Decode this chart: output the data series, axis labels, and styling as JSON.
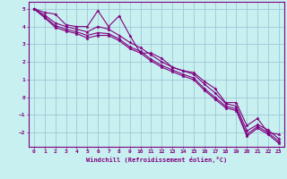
{
  "xlabel": "Windchill (Refroidissement éolien,°C)",
  "bg_color": "#c8f0f0",
  "grid_color": "#9ec8d8",
  "line_color": "#800080",
  "marker": "*",
  "xlim": [
    -0.5,
    23.5
  ],
  "ylim": [
    -2.8,
    5.4
  ],
  "yticks": [
    -2,
    -1,
    0,
    1,
    2,
    3,
    4,
    5
  ],
  "xticks": [
    0,
    1,
    2,
    3,
    4,
    5,
    6,
    7,
    8,
    9,
    10,
    11,
    12,
    13,
    14,
    15,
    16,
    17,
    18,
    19,
    20,
    21,
    22,
    23
  ],
  "lines": [
    [
      5.0,
      4.8,
      4.7,
      4.1,
      4.0,
      4.0,
      4.9,
      4.0,
      4.6,
      3.5,
      2.5,
      2.5,
      2.2,
      1.7,
      1.5,
      1.4,
      0.9,
      0.5,
      -0.3,
      -0.3,
      -1.6,
      -1.2,
      -2.0,
      -2.1
    ],
    [
      5.0,
      4.65,
      4.2,
      4.0,
      3.85,
      3.7,
      4.0,
      3.85,
      3.5,
      3.1,
      2.8,
      2.4,
      2.0,
      1.7,
      1.5,
      1.3,
      0.75,
      0.25,
      -0.35,
      -0.5,
      -1.9,
      -1.55,
      -1.85,
      -2.35
    ],
    [
      5.0,
      4.55,
      4.05,
      3.85,
      3.7,
      3.5,
      3.65,
      3.6,
      3.3,
      2.85,
      2.6,
      2.15,
      1.8,
      1.55,
      1.3,
      1.1,
      0.5,
      0.0,
      -0.5,
      -0.65,
      -2.1,
      -1.65,
      -2.0,
      -2.5
    ],
    [
      5.0,
      4.5,
      3.95,
      3.75,
      3.6,
      3.35,
      3.5,
      3.5,
      3.2,
      2.75,
      2.5,
      2.05,
      1.7,
      1.45,
      1.2,
      1.0,
      0.4,
      -0.1,
      -0.6,
      -0.75,
      -2.2,
      -1.75,
      -2.1,
      -2.6
    ]
  ]
}
